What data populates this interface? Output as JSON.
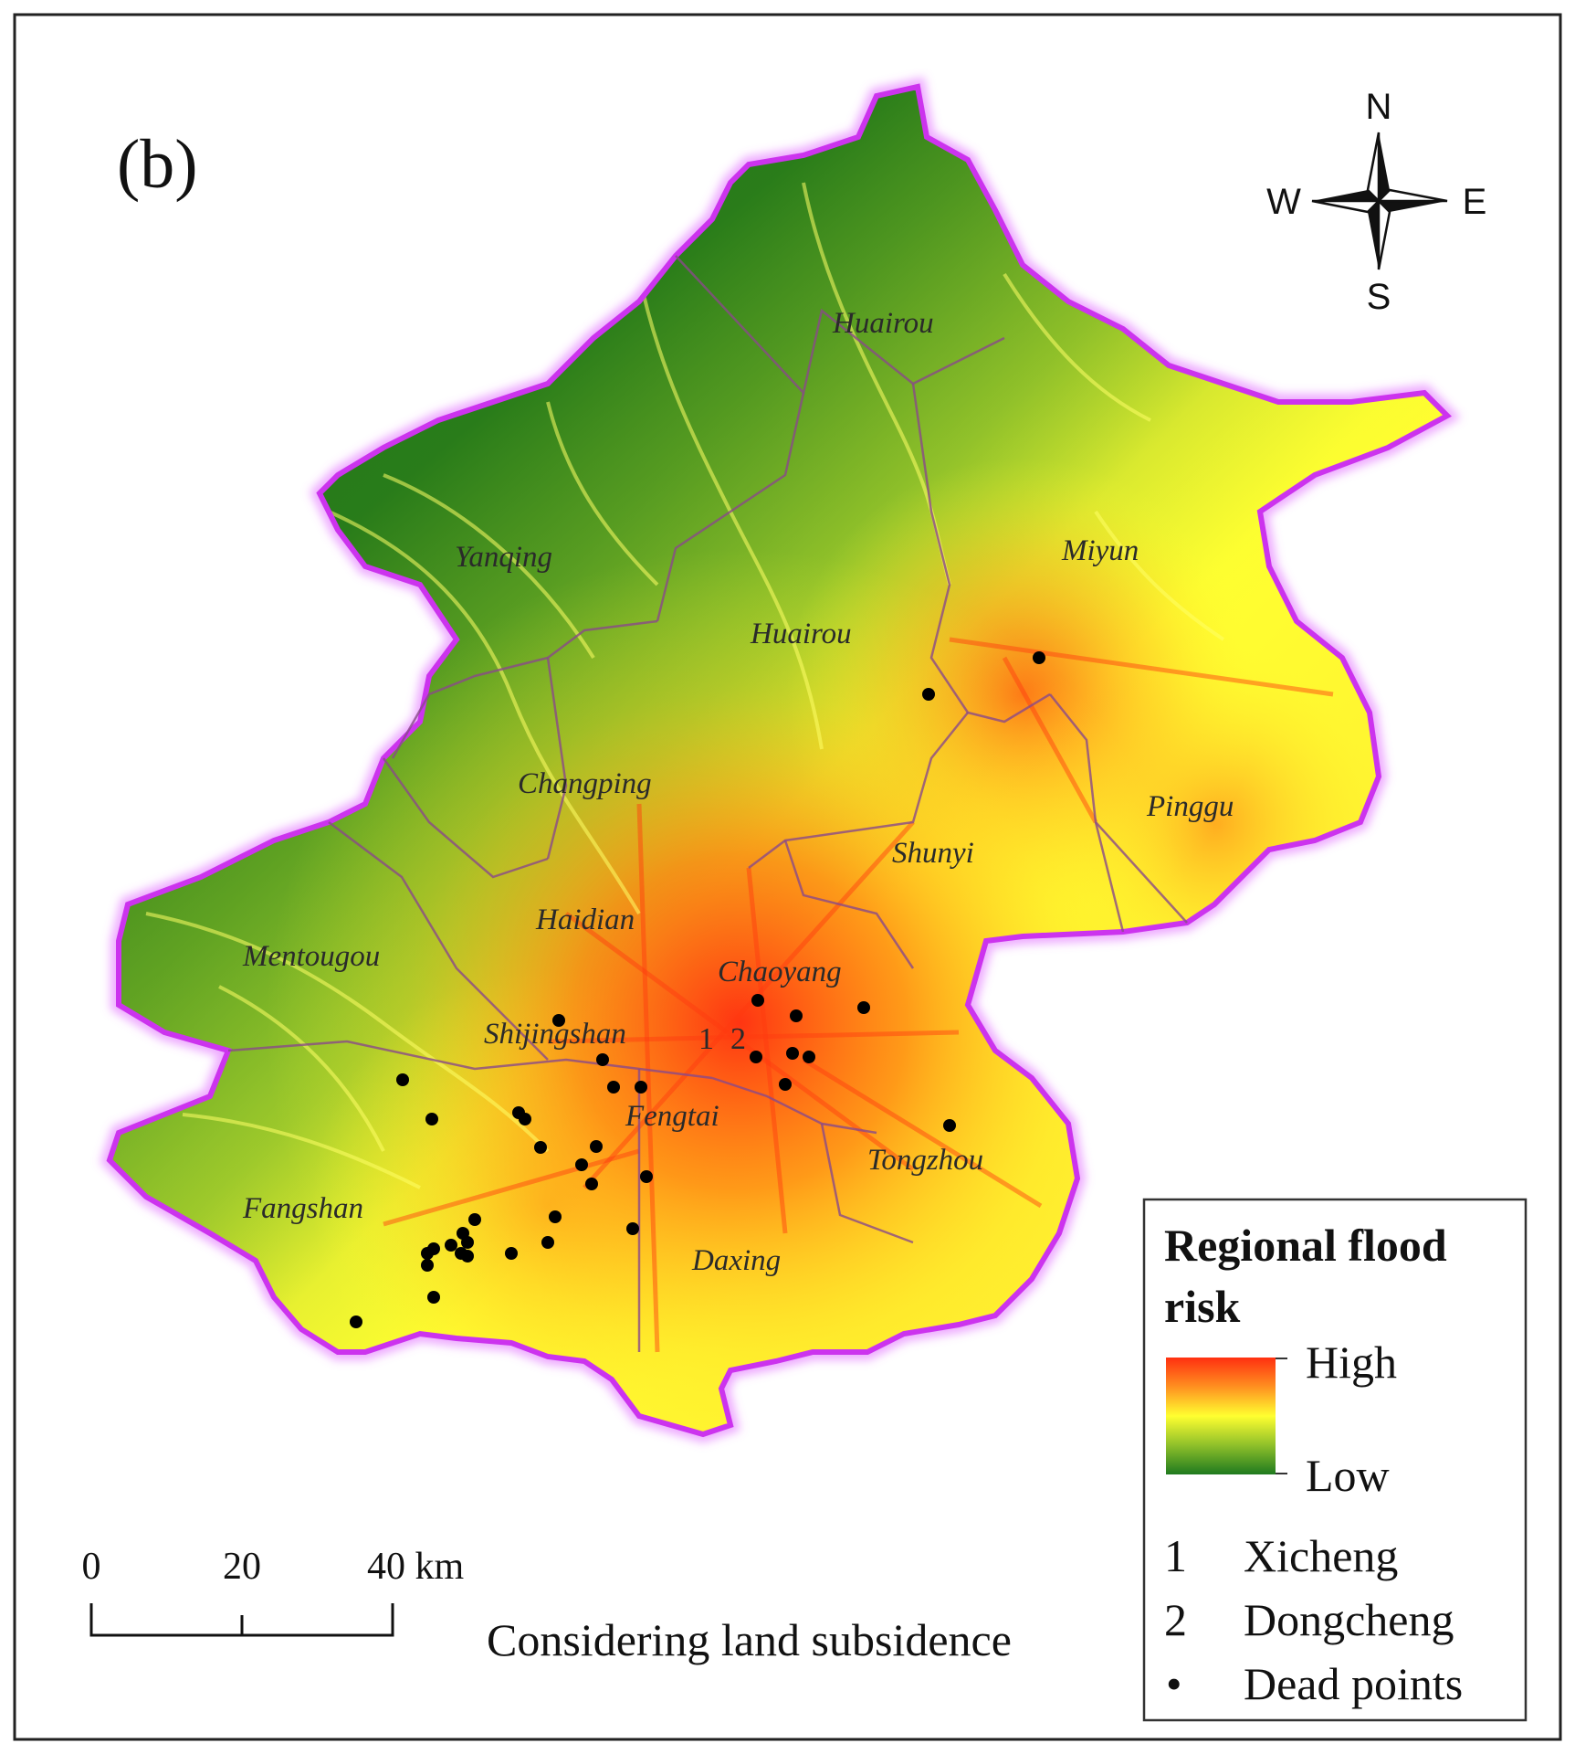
{
  "panel_label": "(b)",
  "compass": {
    "n": "N",
    "s": "S",
    "e": "E",
    "w": "W"
  },
  "districts": [
    {
      "id": "huairou-north",
      "name": "Huairou"
    },
    {
      "id": "yanqing",
      "name": "Yanqing"
    },
    {
      "id": "miyun",
      "name": "Miyun"
    },
    {
      "id": "huairou",
      "name": "Huairou"
    },
    {
      "id": "changping",
      "name": "Changping"
    },
    {
      "id": "pinggu",
      "name": "Pinggu"
    },
    {
      "id": "shunyi",
      "name": "Shunyi"
    },
    {
      "id": "haidian",
      "name": "Haidian"
    },
    {
      "id": "mentougou",
      "name": "Mentougou"
    },
    {
      "id": "chaoyang",
      "name": "Chaoyang"
    },
    {
      "id": "shijingshan",
      "name": "Shijingshan"
    },
    {
      "id": "fengtai",
      "name": "Fengtai"
    },
    {
      "id": "tongzhou",
      "name": "Tongzhou"
    },
    {
      "id": "fangshan",
      "name": "Fangshan"
    },
    {
      "id": "daxing",
      "name": "Daxing"
    }
  ],
  "map_numbers": [
    "1",
    "2"
  ],
  "scale_bar": {
    "ticks": [
      "0",
      "20",
      "40 km"
    ]
  },
  "caption": "Considering land subsidence",
  "legend": {
    "title_line1": "Regional flood",
    "title_line2": "risk",
    "high": "High",
    "low": "Low",
    "items": [
      {
        "symbol": "1",
        "label": "Xicheng"
      },
      {
        "symbol": "2",
        "label": "Dongcheng"
      },
      {
        "symbol": "•",
        "label": "Dead points"
      }
    ]
  },
  "colors": {
    "boundary": "#cc33ee",
    "risk_high": "#ff3010",
    "risk_mid": "#ffff30",
    "risk_low": "#1f7a1f",
    "dead_point": "#000000"
  }
}
